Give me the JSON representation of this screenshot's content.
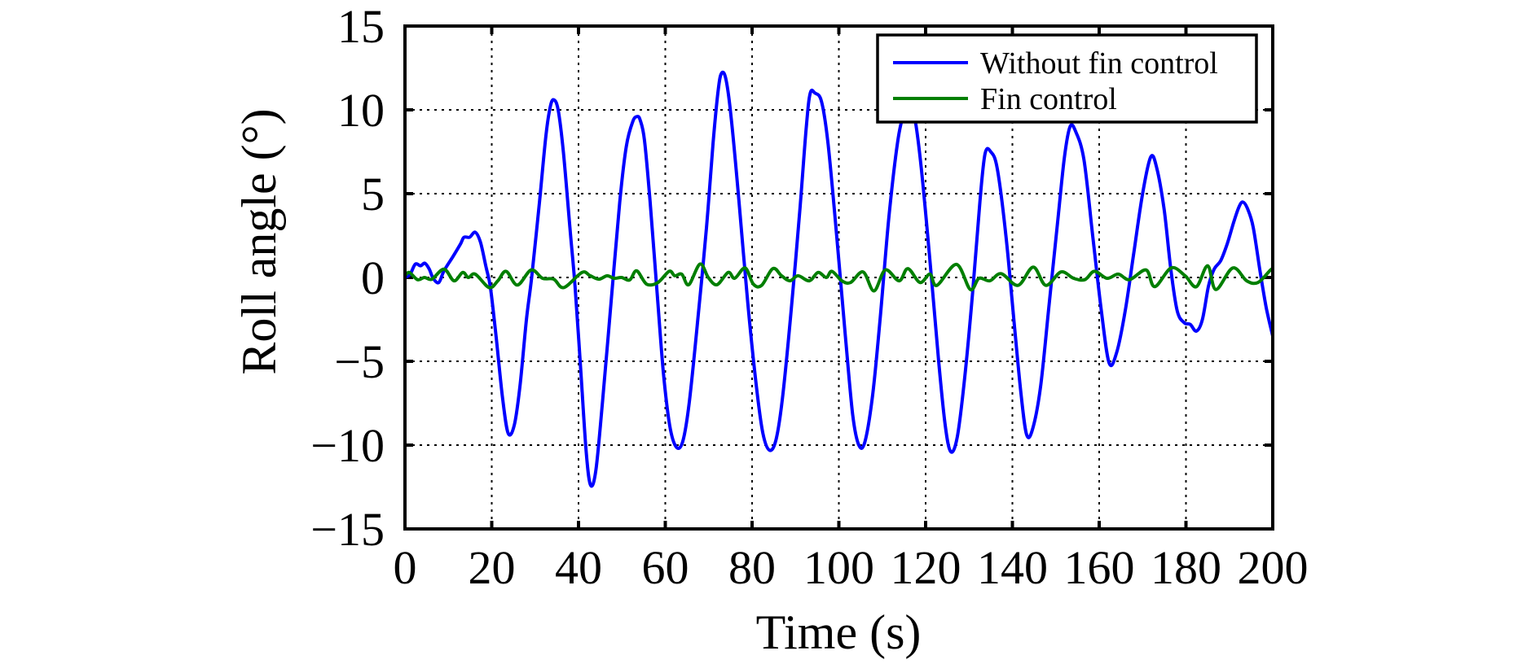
{
  "chart_data": {
    "type": "line",
    "title": "",
    "xlabel": "Time (s)",
    "ylabel": "Roll angle (°)",
    "xlim": [
      0,
      200
    ],
    "ylim": [
      -15,
      15
    ],
    "xticks": [
      0,
      20,
      40,
      60,
      80,
      100,
      120,
      140,
      160,
      180,
      200
    ],
    "yticks": [
      15,
      10,
      5,
      0,
      -5,
      -10,
      -15
    ],
    "xtick_labels": [
      "0",
      "20",
      "40",
      "60",
      "80",
      "100",
      "120",
      "140",
      "160",
      "180",
      "200"
    ],
    "ytick_labels": [
      "15",
      "10",
      "5",
      "0",
      "−5",
      "−10",
      "−15"
    ],
    "grid": true,
    "legend_position": "top-right",
    "series": [
      {
        "name": "Without fin control",
        "color": "#0000ff",
        "x": [
          0,
          1.2,
          2.4,
          3.6,
          4.6,
          5.6,
          6.5,
          7.8,
          9,
          11.2,
          12.8,
          13.6,
          14.9,
          16.2,
          17.4,
          18.7,
          19.7,
          21,
          22.5,
          23.8,
          25.2,
          26.5,
          28,
          29.2,
          31,
          32.5,
          33.5,
          34.3,
          35.3,
          36.5,
          38,
          39.2,
          40.5,
          41.8,
          42.8,
          44,
          45.5,
          47.5,
          49.5,
          51,
          52.5,
          53.5,
          54.2,
          55.2,
          56.5,
          58,
          59.5,
          61,
          62.5,
          64,
          65.5,
          67.5,
          69.5,
          71,
          72.2,
          73,
          74,
          75.2,
          77,
          79,
          81,
          82.5,
          84,
          85.5,
          87,
          89,
          91,
          92.5,
          93.4,
          94.5,
          96,
          97.5,
          99.5,
          101.5,
          103.2,
          104.6,
          106,
          107.8,
          109.5,
          111.5,
          113.5,
          115,
          116.2,
          117.5,
          119,
          121,
          123,
          124.5,
          125.8,
          127.3,
          129,
          130.8,
          132.5,
          133.7,
          135,
          136.5,
          138.5,
          140.5,
          142,
          143.3,
          144.7,
          146.5,
          148.5,
          150.5,
          152,
          153.3,
          154.6,
          156.5,
          158.5,
          160.5,
          162.3,
          164,
          166,
          168,
          170,
          171.9,
          173.3,
          175,
          176.5,
          178,
          179.6,
          181,
          182.4,
          183.8,
          185.2,
          186.5,
          188,
          189.5,
          191,
          192.2,
          193.1,
          194.2,
          195.5,
          197,
          198.5,
          200
        ],
        "y": [
          0,
          0.2,
          0.8,
          0.7,
          0.85,
          0.5,
          -0.05,
          -0.3,
          0.4,
          1.3,
          2.0,
          2.4,
          2.4,
          2.7,
          2.1,
          0.6,
          -0.6,
          -3.5,
          -7.2,
          -9.3,
          -8.8,
          -6.5,
          -2.5,
          0,
          4.5,
          8.5,
          10.2,
          10.6,
          10.0,
          7.5,
          3,
          -0.5,
          -5.5,
          -10.5,
          -12.4,
          -11.5,
          -7.5,
          -1.5,
          4.5,
          7.8,
          9.3,
          9.6,
          9.4,
          8.2,
          4.5,
          -0.5,
          -5.5,
          -8.8,
          -10.1,
          -9.8,
          -7.5,
          -2.5,
          3,
          8,
          11.2,
          12.2,
          11.8,
          9.5,
          4.5,
          -1.5,
          -6.5,
          -9.3,
          -10.3,
          -9.7,
          -7.2,
          -2,
          4,
          9,
          11,
          11.0,
          10.5,
          8,
          2.5,
          -3.5,
          -8.2,
          -10.0,
          -9.8,
          -7,
          -2.5,
          3.5,
          8,
          9.8,
          10.3,
          9.5,
          6.5,
          1,
          -5,
          -8.8,
          -10.4,
          -9.5,
          -6,
          -1,
          4.5,
          7.4,
          7.5,
          6.5,
          2.5,
          -3,
          -7,
          -9.4,
          -9,
          -6.5,
          -1.5,
          3.5,
          7.2,
          9.0,
          8.7,
          7,
          2.5,
          -2,
          -5.1,
          -4.5,
          -2,
          1.5,
          5,
          7.2,
          6.5,
          4,
          0.5,
          -2,
          -2.7,
          -2.8,
          -3.2,
          -2.5,
          -0.5,
          0.5,
          1.0,
          2,
          3.3,
          4.2,
          4.5,
          4.1,
          3,
          0.5,
          -1.8,
          -3.5
        ]
      },
      {
        "name": "Fin control",
        "color": "#007f00",
        "x": [
          0,
          1,
          2.9,
          4.5,
          6.2,
          9,
          11.3,
          13.3,
          14.6,
          16.2,
          19.4,
          21.4,
          23.3,
          25.9,
          29.1,
          31.7,
          34.3,
          36.6,
          40.8,
          42.7,
          44.7,
          46.6,
          48.2,
          49.9,
          51.8,
          53.4,
          55.7,
          58.3,
          60.9,
          62.2,
          63.8,
          65.4,
          68,
          69.9,
          71.9,
          74.5,
          76,
          78.4,
          80.3,
          82.2,
          84.8,
          86.8,
          88.7,
          90.6,
          93.2,
          95.2,
          97.1,
          98.4,
          100.7,
          102.7,
          105.6,
          108.1,
          110.7,
          113.9,
          115.9,
          118.7,
          121,
          122.6,
          127.1,
          130.3,
          132.3,
          134.8,
          137.4,
          141.3,
          144.8,
          147.7,
          151.2,
          154.1,
          156.7,
          158.9,
          161.8,
          164.4,
          167,
          170.8,
          172.8,
          176.6,
          179.8,
          182.4,
          185,
          186.9,
          190.8,
          194,
          196.6,
          199.5,
          200
        ],
        "y": [
          0.1,
          0.3,
          -0.13,
          0,
          -0.1,
          0.5,
          -0.2,
          0.3,
          0,
          0.2,
          -0.6,
          -0.2,
          0.37,
          -0.45,
          0.45,
          -0.05,
          -0.1,
          -0.6,
          0.3,
          0.1,
          -0.1,
          0.1,
          -0.05,
          0,
          -0.15,
          0.4,
          -0.4,
          -0.3,
          0.37,
          0.1,
          0.2,
          -0.43,
          0.8,
          0,
          -0.43,
          0.3,
          -0.05,
          0.57,
          -0.4,
          -0.47,
          0.53,
          0.1,
          -0.2,
          0.1,
          -0.2,
          0.3,
          0,
          0.37,
          -0.2,
          -0.3,
          0.33,
          -0.8,
          0.45,
          -0.2,
          0.53,
          -0.3,
          0.2,
          -0.47,
          0.78,
          -0.72,
          -0.05,
          -0.2,
          0.23,
          -0.47,
          0.62,
          -0.47,
          0.33,
          -0.05,
          -0.13,
          0.37,
          -0.05,
          0.2,
          -0.13,
          0.45,
          -0.55,
          0.57,
          0.1,
          -0.55,
          0.7,
          -0.72,
          0.57,
          -0.2,
          -0.3,
          0.45,
          0.5
        ]
      }
    ]
  }
}
